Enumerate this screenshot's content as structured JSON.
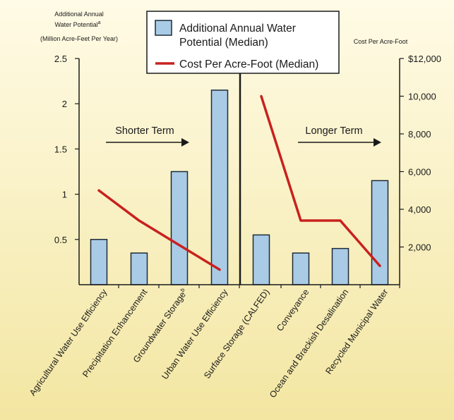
{
  "colors": {
    "bar_fill": "#a9cbe6",
    "bar_stroke": "#1d2b38",
    "line": "#c8211e",
    "bg_top": "#fffbe6",
    "bg_bottom": "#f3e6a2"
  },
  "chart_data": {
    "type": "bar",
    "categories": [
      "Agricultural Water Use Efficiency",
      "Precipitation Enhancement",
      "Groundwater Storage",
      "Urban Water Use Efficiency",
      "Surface Storage (CALFED)",
      "Conveyance",
      "Ocean and Brackish Desalination",
      "Recycled Municipal Water"
    ],
    "category_superscripts": [
      "",
      "",
      "b",
      "",
      "",
      "",
      "",
      ""
    ],
    "series": [
      {
        "name": "Additional Annual Water Potential (Median)",
        "kind": "bar",
        "axis": "left",
        "values": [
          0.5,
          0.35,
          1.25,
          2.15,
          0.55,
          0.35,
          0.4,
          1.15
        ]
      },
      {
        "name": "Cost Per Acre-Foot (Median)",
        "kind": "line",
        "axis": "right",
        "segments": [
          {
            "categories": [
              0,
              1,
              2,
              3
            ],
            "values": [
              5000,
              3400,
              2100,
              800
            ]
          },
          {
            "categories": [
              4,
              5,
              6,
              7
            ],
            "values": [
              10000,
              3400,
              3400,
              1000
            ]
          }
        ]
      }
    ],
    "y_left": {
      "label_lines": [
        "Additional Annual",
        "Water Potential",
        "(Million Acre-Feet Per Year)"
      ],
      "label_superscript": "a",
      "ylim": [
        0,
        2.5
      ],
      "ticks": [
        0.5,
        1,
        1.5,
        2,
        2.5
      ],
      "tick_labels": [
        "0.5",
        "1",
        "1.5",
        "2",
        "2.5"
      ]
    },
    "y_right": {
      "label": "Cost Per Acre-Foot",
      "ylim": [
        0,
        12000
      ],
      "ticks": [
        2000,
        4000,
        6000,
        8000,
        10000,
        12000
      ],
      "tick_labels": [
        "2,000",
        "4,000",
        "6,000",
        "8,000",
        "10,000",
        "$12,000"
      ]
    },
    "annotations": [
      {
        "text": "Shorter Term",
        "group": "left"
      },
      {
        "text": "Longer Term",
        "group": "right"
      }
    ],
    "legend": {
      "position": "top-center",
      "bar_label_lines": [
        "Additional Annual Water",
        "Potential (Median)"
      ],
      "line_label": "Cost Per Acre-Foot (Median)"
    },
    "grid": false
  }
}
